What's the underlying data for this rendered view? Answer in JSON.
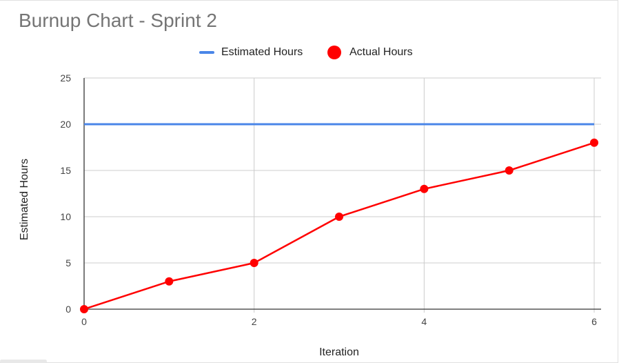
{
  "chart_data": {
    "type": "line",
    "title": "Burnup Chart - Sprint 2",
    "xlabel": "Iteration",
    "ylabel": "Estimated Hours",
    "xlim": [
      0,
      6
    ],
    "ylim": [
      0,
      25
    ],
    "x_ticks": [
      "0",
      "2",
      "4",
      "6"
    ],
    "y_ticks": [
      "0",
      "5",
      "10",
      "15",
      "20",
      "25"
    ],
    "grid": true,
    "legend_position": "top",
    "series": [
      {
        "name": "Estimated Hours",
        "color": "#4a86e8",
        "markers": false,
        "x": [
          0,
          6
        ],
        "y": [
          20,
          20
        ]
      },
      {
        "name": "Actual Hours",
        "color": "#ff0000",
        "markers": true,
        "x": [
          0,
          1,
          2,
          3,
          4,
          5,
          6
        ],
        "y": [
          0,
          3,
          5,
          10,
          13,
          15,
          18
        ]
      }
    ]
  }
}
